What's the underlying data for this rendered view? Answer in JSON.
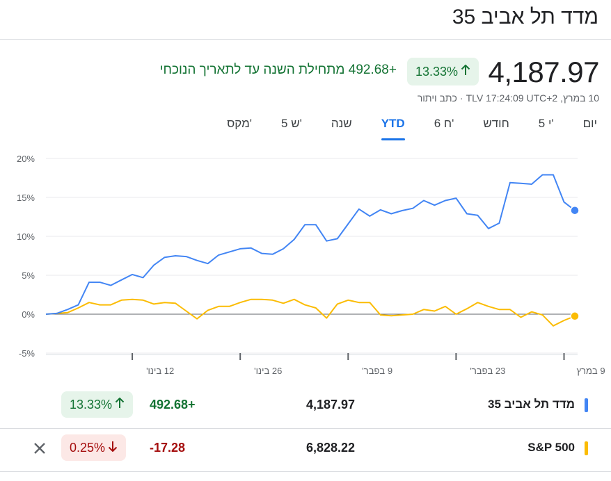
{
  "header": {
    "title": "מדד תל אביב 35"
  },
  "quote": {
    "price": "4,187.97",
    "change_pct": "13.33%",
    "change_text": "+492.68 מתחילת השנה עד לתאריך הנוכחי",
    "meta_time": "10 במרץ, TLV 17:24:09 UTC+2",
    "meta_disclaimer": "כתב ויתור"
  },
  "tabs": [
    {
      "label": "יום"
    },
    {
      "label": "5 י'"
    },
    {
      "label": "חודש"
    },
    {
      "label": "6 ח'"
    },
    {
      "label": "YTD",
      "active": true
    },
    {
      "label": "שנה"
    },
    {
      "label": "5 ש'"
    },
    {
      "label": "מקס'"
    }
  ],
  "chart_data": {
    "type": "line",
    "y_ticks": [
      "20%",
      "15%",
      "10%",
      "5%",
      "0%",
      "-5%"
    ],
    "ylim": [
      -5,
      20
    ],
    "x_ticks": [
      "12 בינו'",
      "26 בינו'",
      "9 בפבר'",
      "23 בפבר'",
      "9 במרץ"
    ],
    "x_tick_index": [
      8,
      18,
      28,
      38,
      48
    ],
    "grid": true,
    "series": [
      {
        "name": "מדד תל אביב 35",
        "color": "#4285f4",
        "values": [
          0,
          0.1,
          0.6,
          1.2,
          4.1,
          4.1,
          3.7,
          4.4,
          5.1,
          4.7,
          6.3,
          7.3,
          7.5,
          7.4,
          6.9,
          6.5,
          7.6,
          8.0,
          8.4,
          8.5,
          7.8,
          7.7,
          8.4,
          9.6,
          11.5,
          11.5,
          9.4,
          9.7,
          11.6,
          13.5,
          12.6,
          13.4,
          12.9,
          13.3,
          13.6,
          14.6,
          14.0,
          14.6,
          14.9,
          12.9,
          12.7,
          11.0,
          11.7,
          16.9,
          16.8,
          16.7,
          17.9,
          17.9,
          14.4,
          13.33
        ]
      },
      {
        "name": "S&P 500",
        "color": "#fbbc04",
        "values": [
          0,
          0.1,
          0.2,
          0.8,
          1.5,
          1.2,
          1.2,
          1.8,
          1.9,
          1.8,
          1.3,
          1.5,
          1.4,
          0.4,
          -0.6,
          0.5,
          1.0,
          1.0,
          1.5,
          1.9,
          1.9,
          1.8,
          1.4,
          1.9,
          1.2,
          0.8,
          -0.5,
          1.3,
          1.8,
          1.5,
          1.5,
          -0.1,
          -0.2,
          -0.1,
          0.0,
          0.6,
          0.4,
          1.0,
          0.0,
          0.7,
          1.5,
          1.0,
          0.6,
          0.6,
          -0.4,
          0.3,
          -0.1,
          -1.5,
          -0.8,
          -0.25
        ]
      }
    ]
  },
  "compare": [
    {
      "name": "מדד תל אביב 35",
      "color": "#4285f4",
      "value": "4,187.97",
      "change": "492.68+",
      "change_pct": "13.33%",
      "direction": "up"
    },
    {
      "name": "S&P 500",
      "color": "#fbbc04",
      "value": "6,828.22",
      "change": "-17.28",
      "change_pct": "0.25%",
      "direction": "down",
      "removable": true
    }
  ]
}
